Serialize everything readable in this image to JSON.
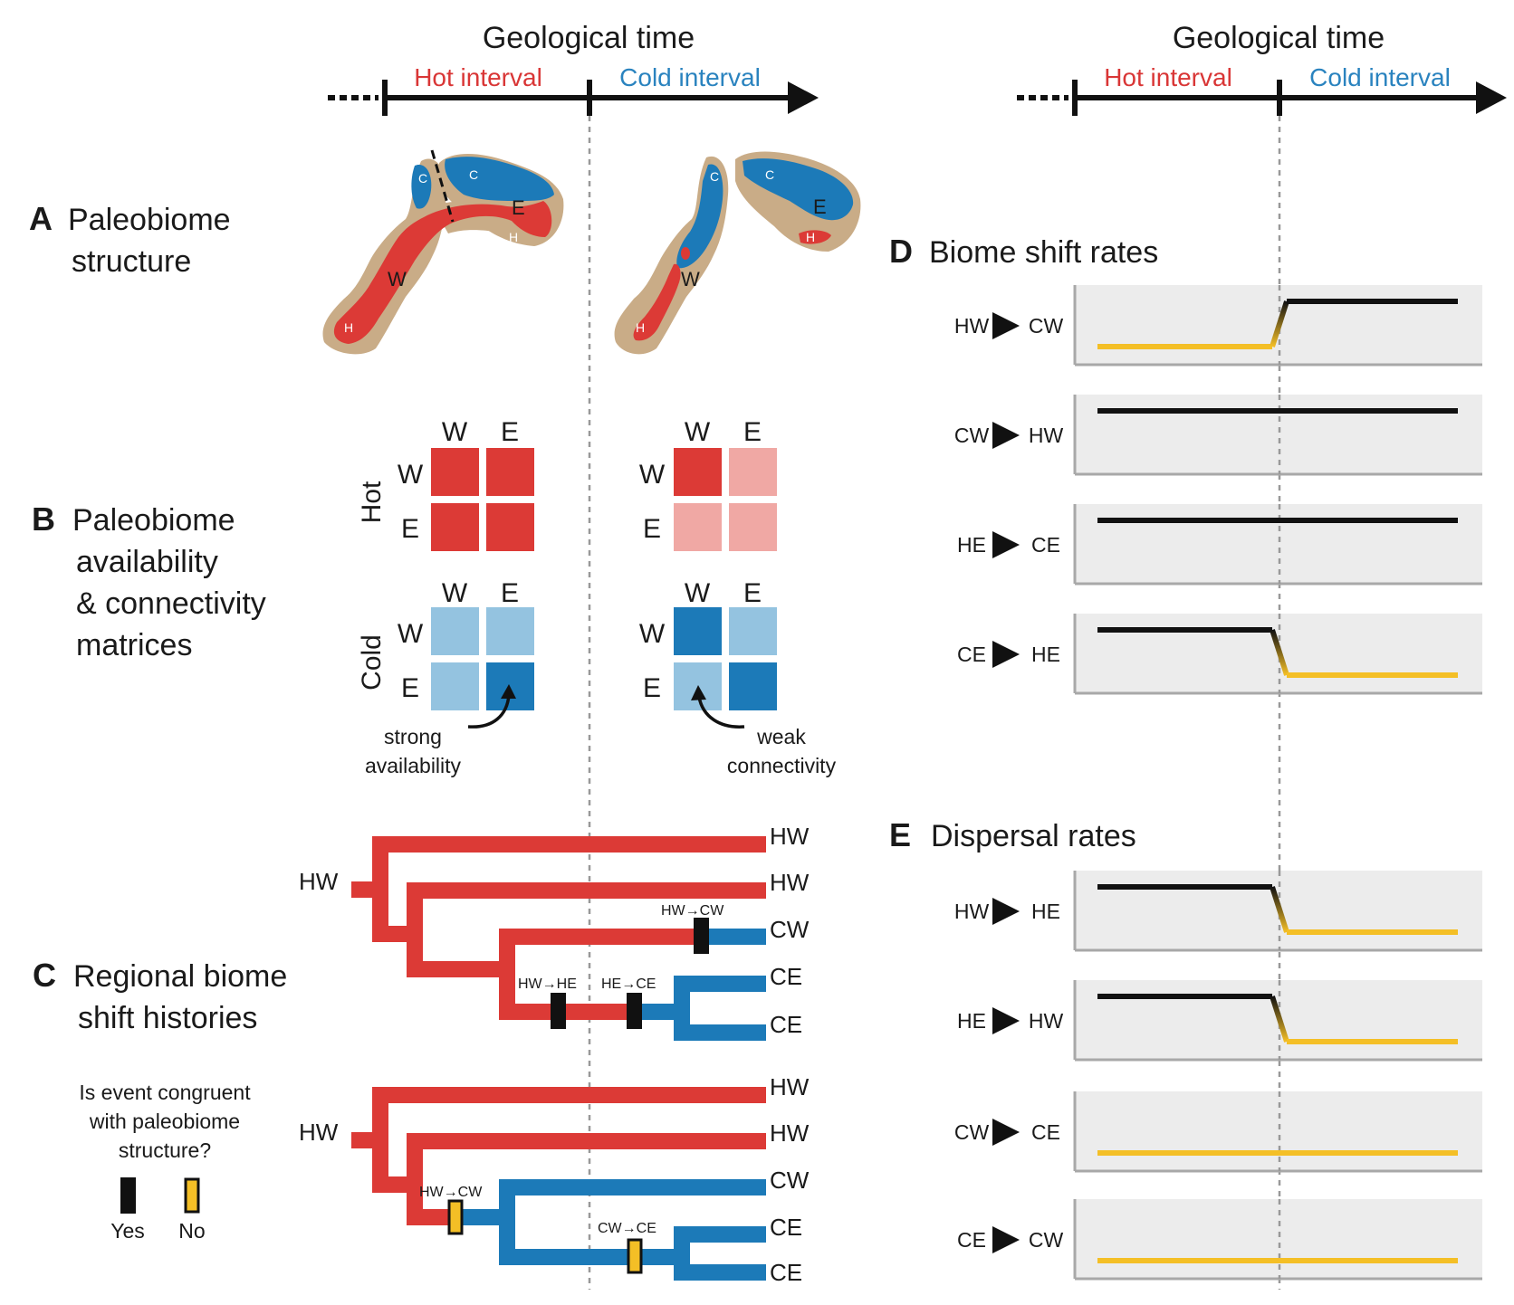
{
  "timeline": {
    "title": "Geological time",
    "hot_label": "Hot interval",
    "cold_label": "Cold interval"
  },
  "panels": {
    "A": {
      "letter": "A",
      "line1": "Paleobiome",
      "line2": "structure"
    },
    "B": {
      "letter": "B",
      "line1": "Paleobiome",
      "line2": "availability",
      "line3": "& connectivity",
      "line4": "matrices"
    },
    "C": {
      "letter": "C",
      "line1": "Regional biome",
      "line2": "shift histories"
    },
    "D": {
      "letter": "D",
      "title": "Biome shift rates"
    },
    "E": {
      "letter": "E",
      "title": "Dispersal rates"
    }
  },
  "maps": {
    "labels": {
      "c": "C",
      "e": "E",
      "h": "H",
      "w": "W"
    }
  },
  "matrices": {
    "col_w": "W",
    "col_e": "E",
    "row_w": "W",
    "row_e": "E",
    "hot_label": "Hot",
    "cold_label": "Cold",
    "strong_line1": "strong",
    "strong_line2": "availability",
    "weak_line1": "weak",
    "weak_line2": "connectivity",
    "colors": {
      "hot_strong": "#dc3a36",
      "hot_weak": "#f0a8a4",
      "cold_strong": "#1c7ab8",
      "cold_weak": "#94c3e0"
    }
  },
  "trees": {
    "root": "HW",
    "leaves": [
      "HW",
      "HW",
      "CW",
      "CE",
      "CE"
    ],
    "events_top": {
      "hw_cw": "HW→CW",
      "hw_he": "HW→HE",
      "he_ce": "HE→CE"
    },
    "events_bottom": {
      "hw_cw": "HW→CW",
      "cw_ce": "CW→CE"
    }
  },
  "legend": {
    "question_line1": "Is event congruent",
    "question_line2": "with paleobiome",
    "question_line3": "structure?",
    "yes": "Yes",
    "no": "No"
  },
  "rates": {
    "biome_shift": [
      {
        "from": "HW",
        "to": "CW",
        "hot": "low",
        "cold": "high"
      },
      {
        "from": "CW",
        "to": "HW",
        "hot": "high",
        "cold": "high"
      },
      {
        "from": "HE",
        "to": "CE",
        "hot": "high",
        "cold": "high"
      },
      {
        "from": "CE",
        "to": "HE",
        "hot": "high",
        "cold": "low"
      }
    ],
    "dispersal": [
      {
        "from": "HW",
        "to": "HE",
        "hot": "high",
        "cold": "low"
      },
      {
        "from": "HE",
        "to": "HW",
        "hot": "high",
        "cold": "low"
      },
      {
        "from": "CW",
        "to": "CE",
        "hot": "low",
        "cold": "low"
      },
      {
        "from": "CE",
        "to": "CW",
        "hot": "low",
        "cold": "low"
      }
    ]
  },
  "colors": {
    "hot": "#d93636",
    "cold": "#2a83bf",
    "land": "#c9ac87",
    "high_rate": "#111111",
    "low_rate": "#f4bf26",
    "event_yes": "#111111",
    "event_no": "#f4bf26"
  }
}
